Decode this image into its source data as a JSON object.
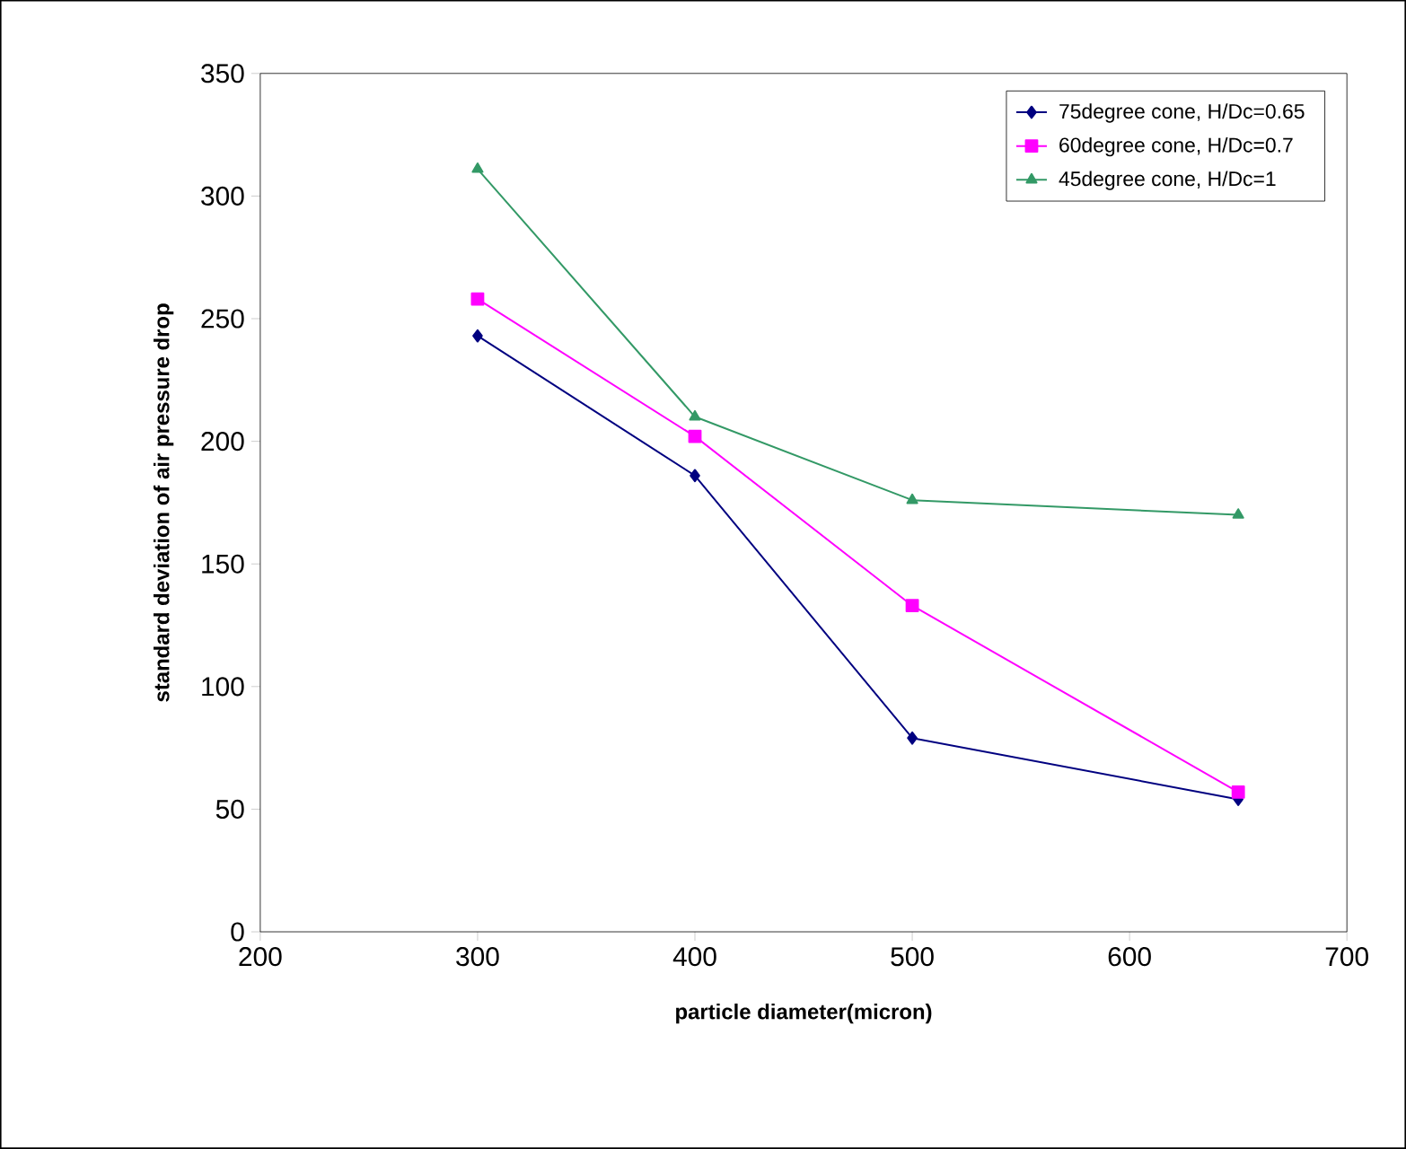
{
  "chart_data": {
    "type": "line",
    "xlabel": "particle diameter(micron)",
    "ylabel": "standard deviation of air pressure drop",
    "xlim": [
      200,
      700
    ],
    "xticks": [
      200,
      300,
      400,
      500,
      600,
      700
    ],
    "ylim": [
      0,
      350
    ],
    "yticks": [
      0,
      50,
      100,
      150,
      200,
      250,
      300,
      350
    ],
    "grid": false,
    "legend": "top right",
    "line_style": "solid",
    "series": [
      {
        "name": "75degree cone, H/Dc=0.65",
        "color": "#000080",
        "marker": "diamond",
        "x": [
          300,
          400,
          500,
          650
        ],
        "values": [
          243,
          186,
          79,
          54
        ]
      },
      {
        "name": "60degree cone, H/Dc=0.7",
        "color": "#ff00ff",
        "marker": "square",
        "x": [
          300,
          400,
          500,
          650
        ],
        "values": [
          258,
          202,
          133,
          57
        ]
      },
      {
        "name": "45degree cone, H/Dc=1",
        "color": "#339966",
        "marker": "triangle",
        "x": [
          300,
          400,
          500,
          650
        ],
        "values": [
          311,
          210,
          176,
          170
        ]
      }
    ]
  }
}
